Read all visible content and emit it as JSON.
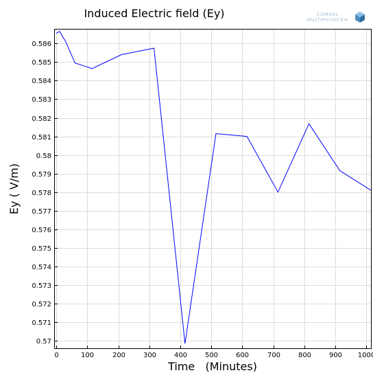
{
  "chart_data": {
    "type": "line",
    "title": "Induced Electric field (Ey)",
    "xlabel": "Time   (Minutes)",
    "ylabel": "Ey ( V/m)",
    "xlim": [
      -5,
      1015
    ],
    "ylim": [
      0.5696,
      0.58675
    ],
    "x_ticks": [
      0,
      100,
      200,
      300,
      400,
      500,
      600,
      700,
      800,
      900,
      1000
    ],
    "y_ticks": [
      0.57,
      0.571,
      0.572,
      0.573,
      0.574,
      0.575,
      0.576,
      0.577,
      0.578,
      0.579,
      0.58,
      0.581,
      0.582,
      0.583,
      0.584,
      0.585,
      0.586
    ],
    "grid": true,
    "line_color": "#0000ff",
    "series": [
      {
        "x": [
          0,
          10,
          30,
          60,
          115,
          210,
          315,
          415,
          515,
          615,
          715,
          815,
          915,
          1015
        ],
        "y": [
          0.58655,
          0.58665,
          0.5861,
          0.58495,
          0.58465,
          0.5854,
          0.58575,
          0.56985,
          0.58115,
          0.581,
          0.578,
          0.58168,
          0.57915,
          0.5781
        ]
      }
    ]
  },
  "logo": {
    "line1": "COMSOL",
    "line2": "MULTIPHYSICS®",
    "color": "#4f8fbf"
  }
}
